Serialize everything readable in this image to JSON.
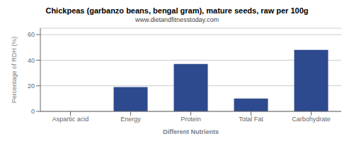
{
  "chart_data": {
    "type": "bar",
    "title": "Chickpeas (garbanzo beans, bengal gram), mature seeds, raw per 100g",
    "subtitle": "www.dietandfitnesstoday.com",
    "xlabel": "Different Nutrients",
    "ylabel": "Percentage of RDH (%)",
    "categories": [
      "Aspartic acid",
      "Energy",
      "Protein",
      "Total Fat",
      "Carbohydrate"
    ],
    "values": [
      0,
      19,
      37,
      10,
      48
    ],
    "color": "#2e4a8e",
    "ylim": [
      0,
      65
    ],
    "yticks": [
      0,
      20,
      40,
      60
    ],
    "grid": true
  }
}
